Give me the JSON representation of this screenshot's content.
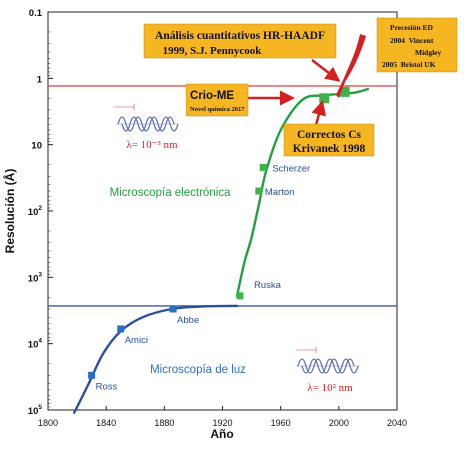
{
  "chart_data": {
    "type": "line",
    "title": "",
    "xlabel": "Año",
    "ylabel": "Resolución (Å)",
    "xlim": [
      1800,
      2040
    ],
    "x_ticks": [
      1800,
      1840,
      1880,
      1920,
      1960,
      2000,
      2040
    ],
    "x_tick_labels": [
      "1800",
      "1840",
      "1880",
      "1920",
      "1960",
      "2000",
      "2040"
    ],
    "y_scale": "log-reversed",
    "ylim": [
      0.1,
      100000
    ],
    "y_ticks": [
      0.1,
      1,
      10,
      100,
      1000,
      10000,
      100000
    ],
    "y_tick_labels": [
      {
        "base": "0.1",
        "exp": ""
      },
      {
        "base": "1",
        "exp": ""
      },
      {
        "base": "10",
        "exp": ""
      },
      {
        "base": "10",
        "exp": "2"
      },
      {
        "base": "10",
        "exp": "3"
      },
      {
        "base": "10",
        "exp": "4"
      },
      {
        "base": "10",
        "exp": "5"
      }
    ],
    "grid": false,
    "series": [
      {
        "color": "#2a4fa0",
        "marker_color": "#2a6fc0",
        "curve": [
          [
            1818,
            110000
          ],
          [
            1828,
            40000
          ],
          [
            1838,
            14000
          ],
          [
            1850,
            6500
          ],
          [
            1865,
            4000
          ],
          [
            1885,
            3000
          ],
          [
            1905,
            2750
          ],
          [
            1930,
            2700
          ]
        ],
        "points": [
          {
            "x": 1830,
            "y": 30000,
            "label": "Ross"
          },
          {
            "x": 1850,
            "y": 6000,
            "label": "Amici"
          },
          {
            "x": 1886,
            "y": 3000,
            "label": "Abbe"
          }
        ]
      },
      {
        "color": "#22a040",
        "marker_color": "#3cb44b",
        "curve": [
          [
            1930,
            1900
          ],
          [
            1935,
            600
          ],
          [
            1940,
            250
          ],
          [
            1945,
            80
          ],
          [
            1950,
            25
          ],
          [
            1960,
            6
          ],
          [
            1975,
            2.1
          ],
          [
            1990,
            1.8
          ],
          [
            2010,
            1.65
          ],
          [
            2020,
            1.45
          ]
        ],
        "points": [
          {
            "x": 1932,
            "y": 1900,
            "label": "Ruska"
          },
          {
            "x": 1945,
            "y": 50,
            "label": "Marton"
          },
          {
            "x": 1948,
            "y": 22,
            "label": "Scherzer"
          },
          {
            "x": 1990,
            "y": 2.0,
            "label": ""
          },
          {
            "x": 2004,
            "y": 1.6,
            "label": ""
          }
        ]
      }
    ],
    "reference_lines": [
      {
        "orientation": "horizontal",
        "y": 1.3,
        "color": "#e05050"
      },
      {
        "orientation": "horizontal",
        "y": 2700,
        "color": "#3a5a9a"
      }
    ],
    "region_labels": [
      {
        "text": "Microscopía electrónica",
        "color": "#22a040"
      },
      {
        "text": "Microscopía de luz",
        "color": "#2a6fc0"
      }
    ],
    "annotations": [
      {
        "lines": [
          "Análisis cuantitativos HR-HAADF",
          "1999, S.J. Pennycook"
        ]
      },
      {
        "lines": [
          "Crio-ME",
          "Novel química 2017"
        ]
      },
      {
        "lines": [
          "Correctos Cs",
          "Krivanek 1998"
        ]
      },
      {
        "lines": [
          "Precesión ED",
          "2004  Vincent",
          "Midgley",
          "2005  Bristol UK"
        ]
      }
    ],
    "wavelength_insets": [
      {
        "label": "λ= 10⁻³ nm",
        "color": "#e02020"
      },
      {
        "label": "λ= 10² nm",
        "color": "#e02020"
      }
    ]
  }
}
